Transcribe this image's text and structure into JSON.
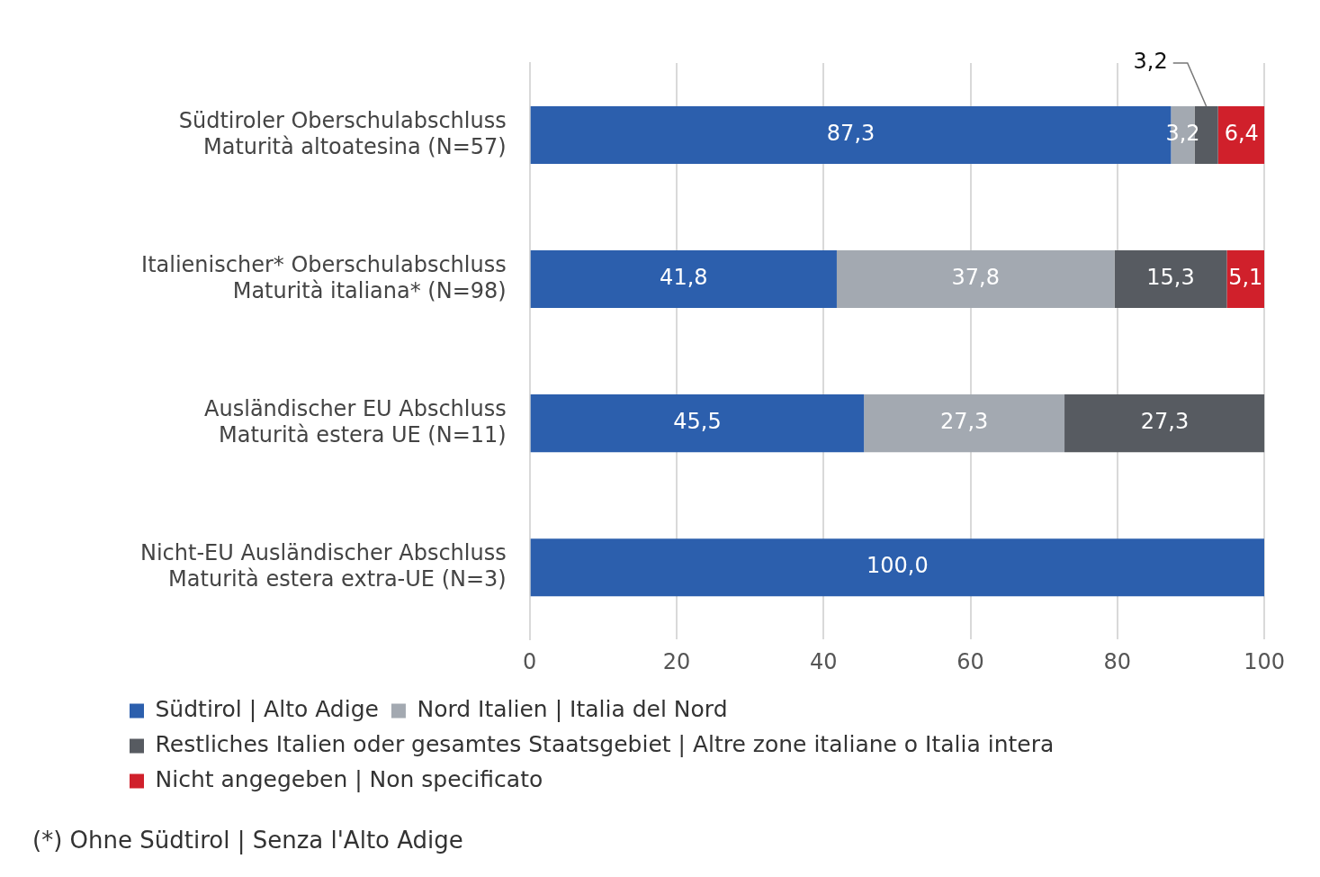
{
  "chart_data": {
    "type": "bar",
    "orientation": "horizontal",
    "stacked": true,
    "categories": [
      "Südtiroler Oberschulabschluss\nMaturità altoatesina (N=57)",
      "Italienischer* Oberschulabschluss\nMaturità italiana* (N=98)",
      "Ausländischer EU Abschluss\nMaturità estera UE (N=11)",
      "Nicht-EU Ausländischer Abschluss\nMaturità estera extra-UE (N=3)"
    ],
    "series": [
      {
        "name": "Südtirol | Alto Adige",
        "color": "#2c5fad",
        "values": [
          87.3,
          41.8,
          45.5,
          100.0
        ],
        "value_labels": [
          "87,3",
          "41,8",
          "45,5",
          "100,0"
        ]
      },
      {
        "name": "Nord Italien | Italia del Nord",
        "color": "#a3a9b1",
        "values": [
          3.2,
          37.8,
          27.3,
          null
        ],
        "value_labels": [
          "3,2",
          "37,8",
          "27,3",
          null
        ]
      },
      {
        "name": "Restliches Italien oder gesamtes Staatsgebiet | Altre zone italiane o Italia intera",
        "color": "#575b61",
        "values": [
          3.2,
          15.3,
          27.3,
          null
        ],
        "value_labels": [
          "3,2",
          "15,3",
          "27,3",
          null
        ]
      },
      {
        "name": "Nicht angegeben | Non specificato",
        "color": "#d0202b",
        "values": [
          6.4,
          5.1,
          null,
          null
        ],
        "value_labels": [
          "6,4",
          "5,1",
          null,
          null
        ]
      }
    ],
    "xlim": [
      0,
      100
    ],
    "xticks": [
      0,
      20,
      40,
      60,
      80,
      100
    ],
    "grid": "x",
    "legend": "bottom",
    "annotations": [
      "(*) Ohne Südtirol | Senza l'Alto Adige"
    ]
  }
}
